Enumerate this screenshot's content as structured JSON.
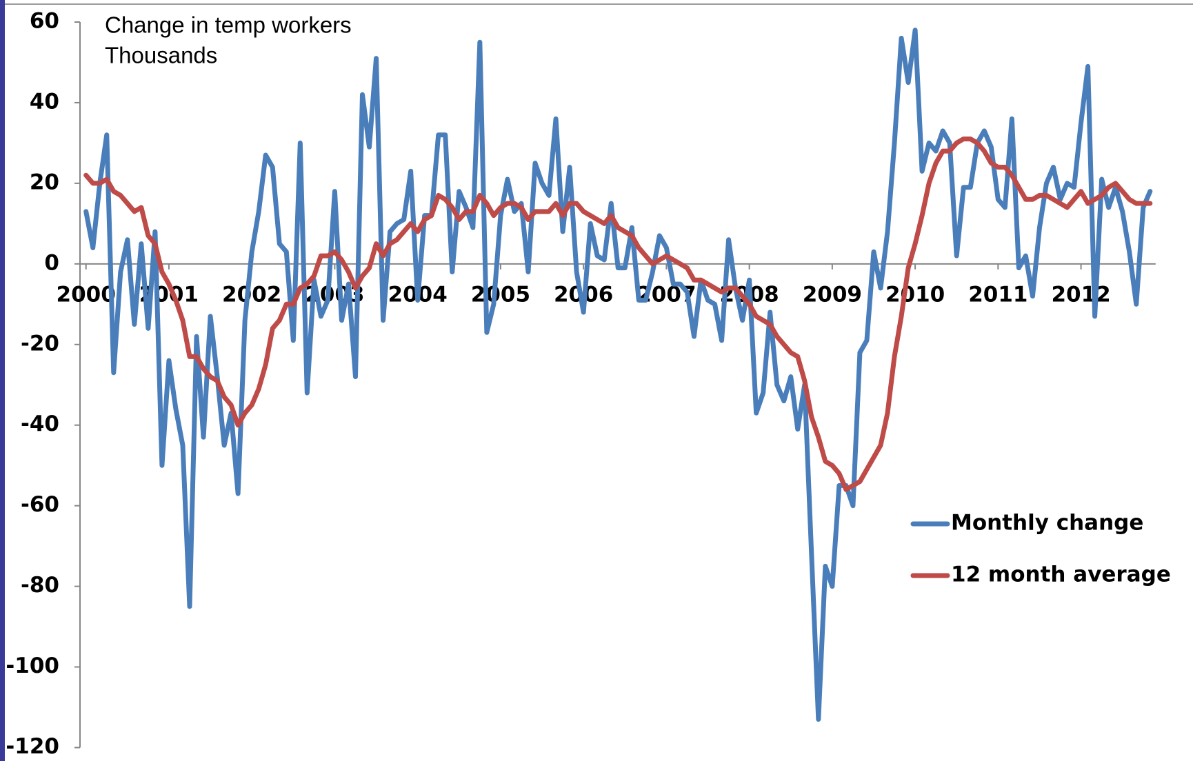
{
  "chart_data": {
    "type": "line",
    "title": "Change in temp workers",
    "subtitle": "Thousands",
    "categories": [
      "2000",
      null,
      null,
      null,
      null,
      null,
      null,
      null,
      null,
      null,
      null,
      null,
      "2001",
      null,
      null,
      null,
      null,
      null,
      null,
      null,
      null,
      null,
      null,
      null,
      "2002",
      null,
      null,
      null,
      null,
      null,
      null,
      null,
      null,
      null,
      null,
      null,
      "2003",
      null,
      null,
      null,
      null,
      null,
      null,
      null,
      null,
      null,
      null,
      null,
      "2004",
      null,
      null,
      null,
      null,
      null,
      null,
      null,
      null,
      null,
      null,
      null,
      "2005",
      null,
      null,
      null,
      null,
      null,
      null,
      null,
      null,
      null,
      null,
      null,
      "2006",
      null,
      null,
      null,
      null,
      null,
      null,
      null,
      null,
      null,
      null,
      null,
      "2007",
      null,
      null,
      null,
      null,
      null,
      null,
      null,
      null,
      null,
      null,
      null,
      "2008",
      null,
      null,
      null,
      null,
      null,
      null,
      null,
      null,
      null,
      null,
      null,
      "2009",
      null,
      null,
      null,
      null,
      null,
      null,
      null,
      null,
      null,
      null,
      null,
      "2010",
      null,
      null,
      null,
      null,
      null,
      null,
      null,
      null,
      null,
      null,
      null,
      "2011",
      null,
      null,
      null,
      null,
      null,
      null,
      null,
      null,
      null,
      null,
      null,
      "2012",
      null,
      null,
      null,
      null,
      null,
      null,
      null,
      null,
      null,
      null
    ],
    "series": [
      {
        "name": "Monthly change",
        "color": "#4a7ebb",
        "values": [
          13,
          4,
          20,
          32,
          -27,
          -2,
          6,
          -15,
          5,
          -16,
          8,
          -50,
          -24,
          -36,
          -45,
          -85,
          -18,
          -43,
          -13,
          -28,
          -45,
          -37,
          -57,
          -14,
          3,
          13,
          27,
          24,
          5,
          3,
          -19,
          30,
          -32,
          -4,
          -13,
          -9,
          18,
          -14,
          -5,
          -28,
          42,
          29,
          51,
          -14,
          8,
          10,
          11,
          23,
          -9,
          12,
          12,
          32,
          32,
          -2,
          18,
          14,
          9,
          55,
          -17,
          -10,
          12,
          21,
          13,
          15,
          -2,
          25,
          20,
          17,
          36,
          8,
          24,
          -2,
          -12,
          10,
          2,
          1,
          15,
          -1,
          -1,
          9,
          -9,
          -9,
          -2,
          7,
          4,
          -5,
          -5,
          -7,
          -18,
          -4,
          -9,
          -10,
          -19,
          6,
          -6,
          -14,
          -4,
          -37,
          -32,
          -12,
          -30,
          -34,
          -28,
          -41,
          -30,
          -72,
          -113,
          -75,
          -80,
          -55,
          -55,
          -60,
          -22,
          -19,
          3,
          -6,
          8,
          30,
          56,
          45,
          58,
          23,
          30,
          28,
          33,
          30,
          2,
          19,
          19,
          30,
          33,
          29,
          16,
          14,
          36,
          -1,
          2,
          -8,
          9,
          20,
          24,
          16,
          20,
          19,
          35,
          49,
          -13,
          21,
          14,
          19,
          13,
          3,
          -10,
          14,
          18
        ]
      },
      {
        "name": "12 month average",
        "color": "#be4b48",
        "values": [
          22,
          20,
          20,
          21,
          18,
          17,
          15,
          13,
          14,
          7,
          5,
          -2,
          -5,
          -9,
          -14,
          -23,
          -23,
          -26,
          -28,
          -29,
          -33,
          -35,
          -40,
          -37,
          -35,
          -31,
          -25,
          -16,
          -14,
          -10,
          -10,
          -6,
          -5,
          -3,
          2,
          2,
          3,
          1,
          -2,
          -6,
          -3,
          -1,
          5,
          2,
          5,
          6,
          8,
          10,
          8,
          11,
          12,
          17,
          16,
          14,
          11,
          13,
          13,
          17,
          15,
          12,
          14,
          15,
          15,
          14,
          11,
          13,
          13,
          13,
          15,
          12,
          15,
          15,
          13,
          12,
          11,
          10,
          12,
          9,
          8,
          7,
          4,
          2,
          0,
          1,
          2,
          1,
          0,
          -1,
          -4,
          -4,
          -5,
          -6,
          -7,
          -6,
          -6,
          -8,
          -10,
          -13,
          -14,
          -15,
          -18,
          -20,
          -22,
          -23,
          -29,
          -38,
          -43,
          -49,
          -50,
          -52,
          -56,
          -55,
          -54,
          -51,
          -48,
          -45,
          -37,
          -23,
          -13,
          -1,
          5,
          12,
          20,
          25,
          28,
          28,
          30,
          31,
          31,
          30,
          28,
          25,
          24,
          24,
          22,
          19,
          16,
          16,
          17,
          17,
          16,
          15,
          14,
          16,
          18,
          15,
          16,
          17,
          19,
          20,
          18,
          16,
          15,
          15,
          15
        ]
      }
    ],
    "ylim": [
      -120,
      60
    ],
    "yticks": [
      -120,
      -100,
      -80,
      -60,
      -40,
      -20,
      0,
      20,
      40,
      60
    ],
    "legend": "lower right",
    "grid": false
  }
}
